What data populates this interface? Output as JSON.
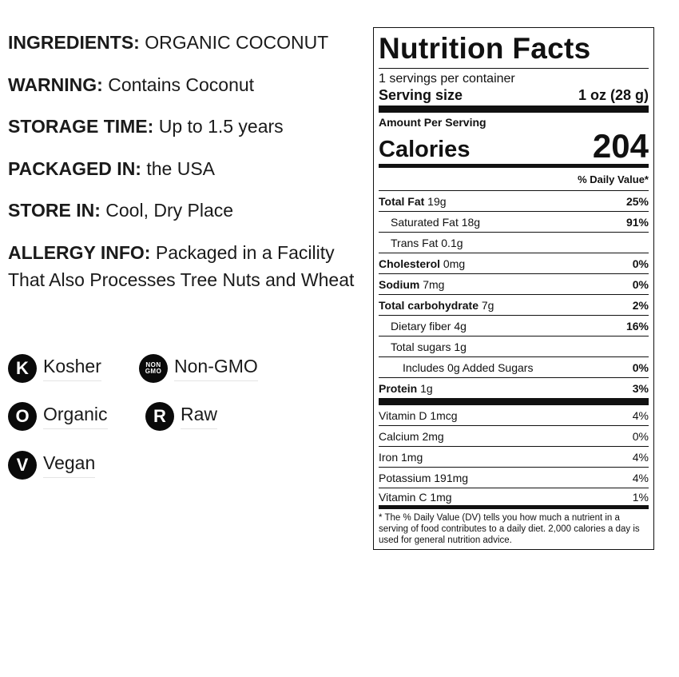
{
  "info": [
    {
      "label": "INGREDIENTS:",
      "value": " ORGANIC COCONUT"
    },
    {
      "label": "WARNING:",
      "value": " Contains Coconut"
    },
    {
      "label": "STORAGE TIME:",
      "value": " Up to 1.5 years"
    },
    {
      "label": "PACKAGED IN:",
      "value": " the USA"
    },
    {
      "label": "STORE IN:",
      "value": " Cool, Dry Place"
    },
    {
      "label": "ALLERGY INFO:",
      "value": " Packaged in a Facility That Also Processes Tree Nuts and Wheat"
    }
  ],
  "badges": {
    "kosher": {
      "glyph": "K",
      "label": "Kosher",
      "icon": "kosher-icon"
    },
    "nongmo": {
      "glyph_top": "NON",
      "glyph_bottom": "GMO",
      "label": "Non-GMO",
      "icon": "non-gmo-icon"
    },
    "organic": {
      "glyph": "O",
      "label": "Organic",
      "icon": "organic-icon"
    },
    "raw": {
      "glyph": "R",
      "label": "Raw",
      "icon": "raw-icon"
    },
    "vegan": {
      "glyph": "V",
      "label": "Vegan",
      "icon": "vegan-icon"
    }
  },
  "nutrition": {
    "title": "Nutrition Facts",
    "servings_per_container": "1 servings per container",
    "serving_size_label": "Serving size",
    "serving_size_value": "1 oz (28 g)",
    "amount_per_serving": "Amount Per Serving",
    "calories_label": "Calories",
    "calories_value": "204",
    "daily_value_header": "% Daily Value*",
    "rows": {
      "total_fat": {
        "name": "Total Fat",
        "amount": " 19g",
        "dv": "25%"
      },
      "saturated_fat": {
        "name": "Saturated Fat 18g",
        "dv": "91%"
      },
      "trans_fat": {
        "name": "Trans Fat 0.1g"
      },
      "cholesterol": {
        "name": "Cholesterol",
        "amount": " 0mg",
        "dv": "0%"
      },
      "sodium": {
        "name": "Sodium",
        "amount": " 7mg",
        "dv": "0%"
      },
      "total_carbohydrate": {
        "name": "Total carbohydrate",
        "amount": " 7g",
        "dv": "2%"
      },
      "dietary_fiber": {
        "name": "Dietary fiber 4g",
        "dv": "16%"
      },
      "total_sugars": {
        "name": "Total sugars 1g"
      },
      "added_sugars": {
        "name": "Includes 0g Added Sugars",
        "dv": "0%"
      },
      "protein": {
        "name": "Protein",
        "amount": " 1g",
        "dv": "3%"
      }
    },
    "vitamins": {
      "vitamin_d": {
        "name": "Vitamin D 1mcg",
        "dv": "4%"
      },
      "calcium": {
        "name": "Calcium 2mg",
        "dv": "0%"
      },
      "iron": {
        "name": "Iron 1mg",
        "dv": "4%"
      },
      "potassium": {
        "name": "Potassium 191mg",
        "dv": "4%"
      },
      "vitamin_c": {
        "name": "Vitamin C 1mg",
        "dv": "1%"
      }
    },
    "footnote": "* The % Daily Value (DV) tells you how much a nutrient in a serving of food contributes to a daily diet. 2,000 calories a day is used for general nutrition advice."
  }
}
